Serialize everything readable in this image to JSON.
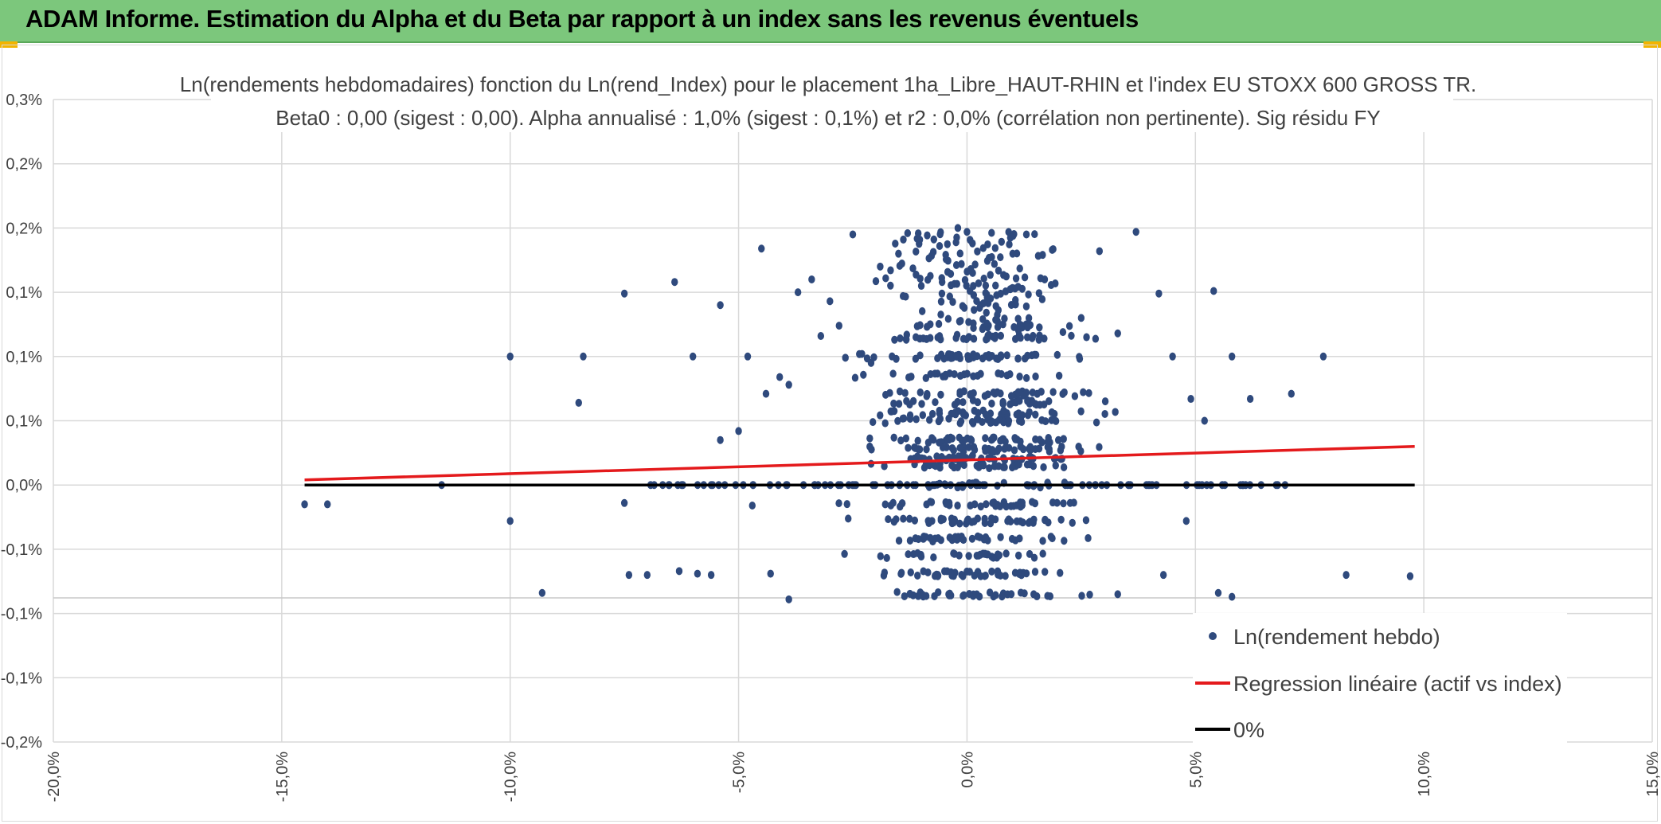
{
  "header": {
    "title": "ADAM Informe. Estimation du Alpha et du Beta par rapport à un index sans les revenus éventuels"
  },
  "colors": {
    "header_bg": "#7cc77c",
    "accent_corner": "#f2b400",
    "points": "#2f4a7d",
    "regression": "#e41a1c",
    "zero_line": "#000000",
    "grid": "#d9d9d9"
  },
  "chart_data": {
    "type": "scatter",
    "title": "Ln(rendements hebdomadaires) fonction du Ln(rend_Index) pour le placement 1ha_Libre_HAUT-RHIN et l'index EU STOXX 600 GROSS TR.",
    "subtitle": "Beta0 : 0,00 (sigest : 0,00). Alpha annualisé : 1,0% (sigest : 0,1%) et r2 : 0,0% (corrélation non pertinente). Sig résidu FY",
    "xlabel": "",
    "ylabel": "",
    "xlim": [
      -20,
      15
    ],
    "ylim": [
      -0.2,
      0.3
    ],
    "x_ticks": [
      -20,
      -15,
      -10,
      -5,
      0,
      5,
      10,
      15
    ],
    "x_tick_labels": [
      "-20,0%",
      "-15,0%",
      "-10,0%",
      "-5,0%",
      "0,0%",
      "5,0%",
      "10,0%",
      "15,0%"
    ],
    "y_ticks": [
      0.3,
      0.25,
      0.2,
      0.15,
      0.1,
      0.05,
      0.0,
      -0.05,
      -0.1,
      -0.15,
      -0.2
    ],
    "y_tick_labels": [
      "0,3%",
      "0,2%",
      "0,2%",
      "0,1%",
      "0,1%",
      "0,1%",
      "0,0%",
      "-0,1%",
      "-0,1%",
      "-0,1%",
      "-0,2%"
    ],
    "grid": true,
    "legend_position": "bottom-right",
    "legend": [
      {
        "label": "Ln(rendement hebdo)",
        "style": "marker"
      },
      {
        "label": "Regression linéaire (actif vs index)",
        "style": "red-line"
      },
      {
        "label": "0%",
        "style": "black-line"
      }
    ],
    "series": [
      {
        "name": "Ln(rendement hebdo)",
        "type": "scatter",
        "points_sample": [
          [
            -14.5,
            -0.015
          ],
          [
            -14.0,
            -0.015
          ],
          [
            -11.5,
            0.0
          ],
          [
            -10.0,
            0.1
          ],
          [
            -10.0,
            -0.028
          ],
          [
            -9.3,
            -0.084
          ],
          [
            -8.4,
            0.1
          ],
          [
            -8.5,
            0.064
          ],
          [
            -7.5,
            0.149
          ],
          [
            -7.5,
            -0.014
          ],
          [
            -7.4,
            -0.07
          ],
          [
            -7.0,
            -0.07
          ],
          [
            -6.4,
            0.158
          ],
          [
            -6.3,
            -0.067
          ],
          [
            -6.0,
            0.1
          ],
          [
            -5.9,
            -0.069
          ],
          [
            -5.6,
            -0.07
          ],
          [
            -5.4,
            0.14
          ],
          [
            -5.4,
            0.035
          ],
          [
            -5.0,
            0.042
          ],
          [
            -4.8,
            0.1
          ],
          [
            -4.7,
            -0.016
          ],
          [
            -4.5,
            0.184
          ],
          [
            -4.4,
            0.071
          ],
          [
            -4.3,
            -0.069
          ],
          [
            -4.1,
            0.084
          ],
          [
            -3.9,
            -0.089
          ],
          [
            -3.9,
            0.078
          ],
          [
            -3.7,
            0.15
          ],
          [
            -3.4,
            0.16
          ],
          [
            -3.2,
            0.116
          ],
          [
            -3.0,
            0.143
          ],
          [
            -2.8,
            0.124
          ],
          [
            -2.5,
            0.195
          ],
          [
            -2.3,
            0.102
          ],
          [
            -2.1,
            0.095
          ],
          [
            -1.9,
            0.17
          ],
          [
            -1.5,
            0.18
          ],
          [
            -1.3,
            0.196
          ],
          [
            -1.0,
            0.155
          ],
          [
            -0.6,
            0.186
          ],
          [
            -0.2,
            0.2
          ],
          [
            0.0,
            0.197
          ],
          [
            0.3,
            0.14
          ],
          [
            0.6,
            0.172
          ],
          [
            1.0,
            0.18
          ],
          [
            1.3,
            0.195
          ],
          [
            1.7,
            0.16
          ],
          [
            2.1,
            0.119
          ],
          [
            2.5,
            0.13
          ],
          [
            2.9,
            0.182
          ],
          [
            3.3,
            0.118
          ],
          [
            3.7,
            0.197
          ],
          [
            4.2,
            0.149
          ],
          [
            4.5,
            0.1
          ],
          [
            4.9,
            0.067
          ],
          [
            5.2,
            0.05
          ],
          [
            5.4,
            0.151
          ],
          [
            5.8,
            0.1
          ],
          [
            5.5,
            -0.084
          ],
          [
            5.8,
            -0.087
          ],
          [
            6.2,
            0.067
          ],
          [
            6.1,
            0.0
          ],
          [
            7.1,
            0.071
          ],
          [
            7.8,
            0.1
          ],
          [
            8.3,
            -0.07
          ],
          [
            9.7,
            -0.071
          ],
          [
            4.8,
            -0.028
          ],
          [
            4.3,
            -0.07
          ],
          [
            3.3,
            -0.085
          ]
        ]
      },
      {
        "name": "Regression linéaire (actif vs index)",
        "type": "line",
        "x": [
          -14.5,
          9.8
        ],
        "y": [
          0.004,
          0.03
        ]
      },
      {
        "name": "0%",
        "type": "line",
        "x": [
          -14.5,
          9.8
        ],
        "y": [
          0.0,
          0.0
        ]
      }
    ]
  }
}
